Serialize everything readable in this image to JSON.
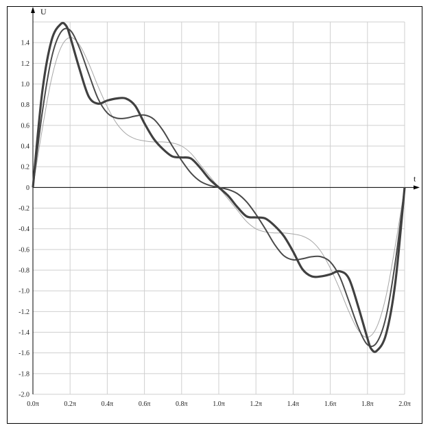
{
  "chart_data": {
    "type": "line",
    "title": "",
    "xlabel": "t",
    "ylabel": "U",
    "xlim_pi": [
      0,
      2
    ],
    "ylim": [
      -2.0,
      1.6
    ],
    "grid": true,
    "x_tick_values_pi": [
      0,
      0.2,
      0.4,
      0.6,
      0.8,
      1.0,
      1.2,
      1.4,
      1.6,
      1.8,
      2.0
    ],
    "x_tick_labels": [
      "0.0π",
      "0.2π",
      "0.4π",
      "0.6π",
      "0.8π",
      "1.0π",
      "1.2π",
      "1.4π",
      "1.6π",
      "1.8π",
      "2.0π"
    ],
    "y_tick_values": [
      1.4,
      1.2,
      1.0,
      0.8,
      0.6,
      0.4,
      0.2,
      0,
      -0.2,
      -0.4,
      -0.6,
      -0.8,
      -1.0,
      -1.2,
      -1.4,
      -1.6,
      -1.8,
      -2.0
    ],
    "y_tick_labels": [
      "1.4",
      "1.2",
      "1.0",
      "0.8",
      "0.6",
      "0.4",
      "0.2",
      "0",
      "-0.2",
      "-0.4",
      "-0.6",
      "-0.8",
      "-1.0",
      "-1.2",
      "-1.4",
      "-1.6",
      "-1.8",
      "-2.0"
    ],
    "series": [
      {
        "color": "#a6a6a6",
        "x_pi": [
          0,
          0.05,
          0.1,
          0.15,
          0.2,
          0.25,
          0.3,
          0.35,
          0.4,
          0.45,
          0.5,
          0.55,
          0.6,
          0.65,
          0.7,
          0.75,
          0.8,
          0.85,
          0.9,
          0.95,
          1.0,
          1.05,
          1.1,
          1.15,
          1.2,
          1.25,
          1.3,
          1.35,
          1.4,
          1.45,
          1.5,
          1.55,
          1.6,
          1.65,
          1.7,
          1.75,
          1.8,
          1.85,
          1.9,
          1.95,
          2.0
        ],
        "y": [
          0,
          0.56,
          1.05,
          1.35,
          1.45,
          1.38,
          1.2,
          0.98,
          0.78,
          0.62,
          0.52,
          0.47,
          0.45,
          0.44,
          0.44,
          0.43,
          0.4,
          0.33,
          0.22,
          0.11,
          0,
          -0.11,
          -0.22,
          -0.33,
          -0.4,
          -0.43,
          -0.44,
          -0.44,
          -0.45,
          -0.47,
          -0.52,
          -0.62,
          -0.78,
          -0.98,
          -1.2,
          -1.38,
          -1.45,
          -1.35,
          -1.05,
          -0.56,
          0
        ]
      },
      {
        "color": "#4a4a4a",
        "x_pi": [
          0,
          0.05,
          0.1,
          0.15,
          0.2,
          0.25,
          0.3,
          0.35,
          0.4,
          0.45,
          0.5,
          0.55,
          0.6,
          0.65,
          0.7,
          0.75,
          0.8,
          0.85,
          0.9,
          0.95,
          1.0,
          1.05,
          1.1,
          1.15,
          1.2,
          1.25,
          1.3,
          1.35,
          1.4,
          1.45,
          1.5,
          1.55,
          1.6,
          1.65,
          1.7,
          1.75,
          1.8,
          1.85,
          1.9,
          1.95,
          2.0
        ],
        "y": [
          0,
          0.72,
          1.25,
          1.5,
          1.52,
          1.35,
          1.1,
          0.86,
          0.72,
          0.67,
          0.67,
          0.69,
          0.7,
          0.66,
          0.55,
          0.4,
          0.26,
          0.14,
          0.06,
          0.02,
          0,
          -0.02,
          -0.06,
          -0.14,
          -0.26,
          -0.4,
          -0.55,
          -0.66,
          -0.7,
          -0.69,
          -0.67,
          -0.67,
          -0.72,
          -0.86,
          -1.1,
          -1.35,
          -1.52,
          -1.5,
          -1.25,
          -0.72,
          0
        ]
      },
      {
        "color": "#404040",
        "x_pi": [
          0,
          0.05,
          0.1,
          0.15,
          0.18,
          0.2,
          0.25,
          0.3,
          0.35,
          0.4,
          0.45,
          0.5,
          0.55,
          0.6,
          0.65,
          0.7,
          0.75,
          0.8,
          0.85,
          0.9,
          0.95,
          1.0,
          1.05,
          1.1,
          1.15,
          1.2,
          1.25,
          1.3,
          1.35,
          1.4,
          1.45,
          1.5,
          1.55,
          1.6,
          1.65,
          1.7,
          1.75,
          1.8,
          1.82,
          1.85,
          1.9,
          1.95,
          2.0
        ],
        "y": [
          0,
          0.92,
          1.42,
          1.58,
          1.56,
          1.46,
          1.15,
          0.88,
          0.81,
          0.84,
          0.86,
          0.86,
          0.79,
          0.62,
          0.47,
          0.37,
          0.3,
          0.29,
          0.28,
          0.19,
          0.08,
          0,
          -0.08,
          -0.19,
          -0.28,
          -0.29,
          -0.3,
          -0.37,
          -0.47,
          -0.62,
          -0.79,
          -0.86,
          -0.86,
          -0.84,
          -0.81,
          -0.88,
          -1.15,
          -1.46,
          -1.56,
          -1.58,
          -1.42,
          -0.92,
          0
        ]
      }
    ]
  }
}
